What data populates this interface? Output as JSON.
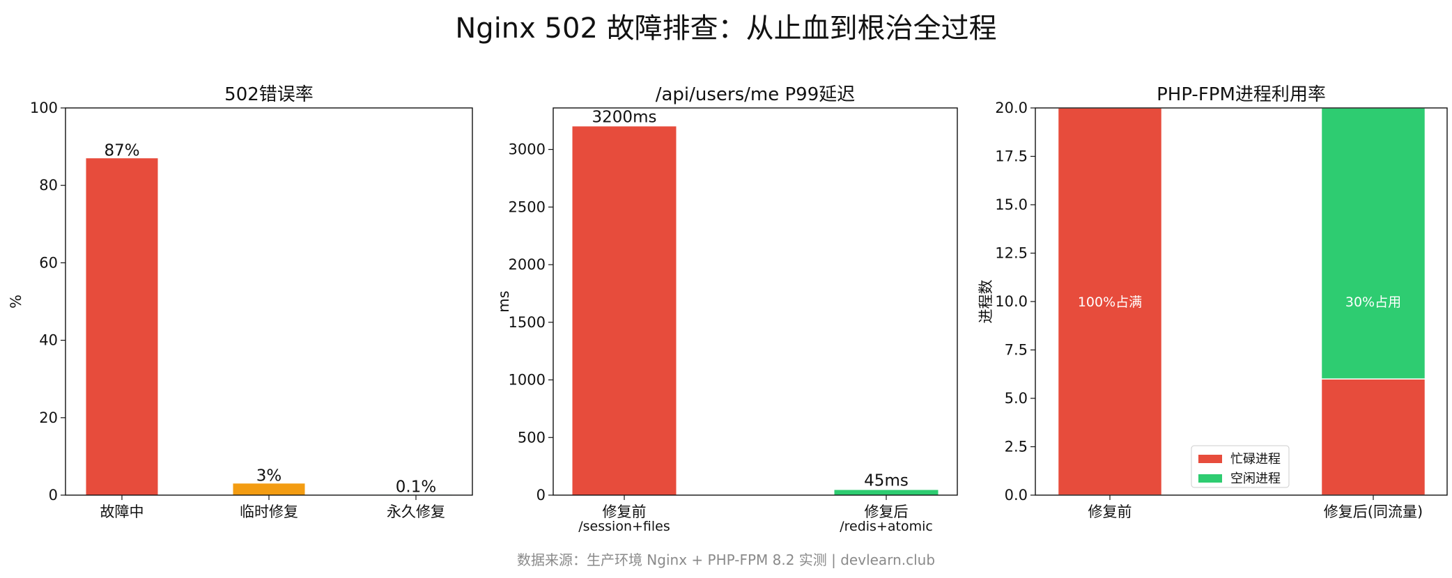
{
  "title": "Nginx 502 故障排查：从止血到根治全过程",
  "source": "数据来源：生产环境 Nginx + PHP-FPM 8.2 实测 | devlearn.club",
  "chart_data": [
    {
      "type": "bar",
      "title": "502错误率",
      "xlabel": "",
      "ylabel": "%",
      "ylim": [
        0,
        100
      ],
      "yticks": [
        "0",
        "20",
        "40",
        "60",
        "80",
        "100"
      ],
      "categories": [
        "故障中",
        "临时修复",
        "永久修复"
      ],
      "values": [
        87,
        3,
        0.1
      ],
      "data_labels": [
        "87%",
        "3%",
        "0.1%"
      ],
      "colors": [
        "#e74c3c",
        "#f39c12",
        "#2ecc71"
      ]
    },
    {
      "type": "bar",
      "title": "/api/users/me P99延迟",
      "xlabel": "",
      "ylabel": "ms",
      "ylim": [
        0,
        3360
      ],
      "yticks": [
        "0",
        "500",
        "1000",
        "1500",
        "2000",
        "2500",
        "3000"
      ],
      "categories": [
        "修复前",
        "修复后"
      ],
      "category_sublabels": [
        "/session+files",
        "/redis+atomic"
      ],
      "values": [
        3200,
        45
      ],
      "data_labels": [
        "3200ms",
        "45ms"
      ],
      "colors": [
        "#e74c3c",
        "#2ecc71"
      ]
    },
    {
      "type": "bar",
      "stacked": true,
      "title": "PHP-FPM进程利用率",
      "xlabel": "",
      "ylabel": "进程数",
      "ylim": [
        0,
        20
      ],
      "yticks": [
        "0.0",
        "2.5",
        "5.0",
        "7.5",
        "10.0",
        "12.5",
        "15.0",
        "17.5",
        "20.0"
      ],
      "categories": [
        "修复前",
        "修复后(同流量)"
      ],
      "series": [
        {
          "name": "忙碌进程",
          "values": [
            20,
            6
          ],
          "color": "#e74c3c"
        },
        {
          "name": "空闲进程",
          "values": [
            0,
            14
          ],
          "color": "#2ecc71"
        }
      ],
      "annotations": [
        "100%占满",
        "30%占用"
      ],
      "legend": "lower-right"
    }
  ]
}
